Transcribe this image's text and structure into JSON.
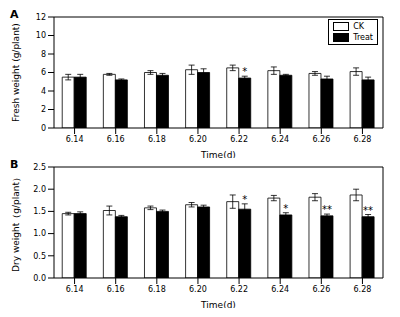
{
  "chart_data": [
    {
      "type": "bar",
      "title": "A",
      "x_label": "Time(d)",
      "y_label": "Fresh weight (g/plant)",
      "categories": [
        "6.14",
        "6.16",
        "6.18",
        "6.20",
        "6.22",
        "6.24",
        "6.26",
        "6.28"
      ],
      "ylim": [
        0,
        12
      ],
      "yticks": [
        0,
        2,
        4,
        6,
        8,
        10,
        12
      ],
      "legend": "upper right",
      "series": [
        {
          "name": "CK",
          "color": "#ffffff",
          "values": [
            5.5,
            5.8,
            6.0,
            6.3,
            6.5,
            6.2,
            5.9,
            6.1
          ],
          "errors": [
            0.3,
            0.1,
            0.2,
            0.5,
            0.3,
            0.4,
            0.2,
            0.4
          ]
        },
        {
          "name": "Treat",
          "color": "#000000",
          "values": [
            5.5,
            5.2,
            5.7,
            6.0,
            5.4,
            5.7,
            5.3,
            5.2
          ],
          "errors": [
            0.3,
            0.1,
            0.2,
            0.4,
            0.2,
            0.1,
            0.3,
            0.3
          ],
          "significance": [
            null,
            null,
            null,
            null,
            "*",
            null,
            null,
            null
          ]
        }
      ]
    },
    {
      "type": "bar",
      "title": "B",
      "x_label": "Time(d)",
      "y_label": "Dry weight（g/plant）",
      "categories": [
        "6.14",
        "6.16",
        "6.18",
        "6.20",
        "6.22",
        "6.24",
        "6.26",
        "6.28"
      ],
      "ylim": [
        0,
        2.5
      ],
      "yticks": [
        {
          "value": 0,
          "label": "0.0"
        },
        0.5,
        {
          "value": 1,
          "label": "1.0"
        },
        1.5,
        {
          "value": 2,
          "label": "2.0"
        },
        2.5
      ],
      "series": [
        {
          "name": "CK",
          "color": "#ffffff",
          "values": [
            1.45,
            1.52,
            1.58,
            1.65,
            1.72,
            1.8,
            1.82,
            1.87
          ],
          "errors": [
            0.03,
            0.1,
            0.04,
            0.05,
            0.15,
            0.06,
            0.08,
            0.13
          ]
        },
        {
          "name": "Treat",
          "color": "#000000",
          "values": [
            1.45,
            1.38,
            1.5,
            1.6,
            1.55,
            1.42,
            1.4,
            1.38
          ],
          "errors": [
            0.04,
            0.03,
            0.03,
            0.04,
            0.12,
            0.05,
            0.04,
            0.05
          ],
          "significance": [
            null,
            null,
            null,
            null,
            "*",
            "*",
            "**",
            "**"
          ]
        }
      ]
    }
  ]
}
